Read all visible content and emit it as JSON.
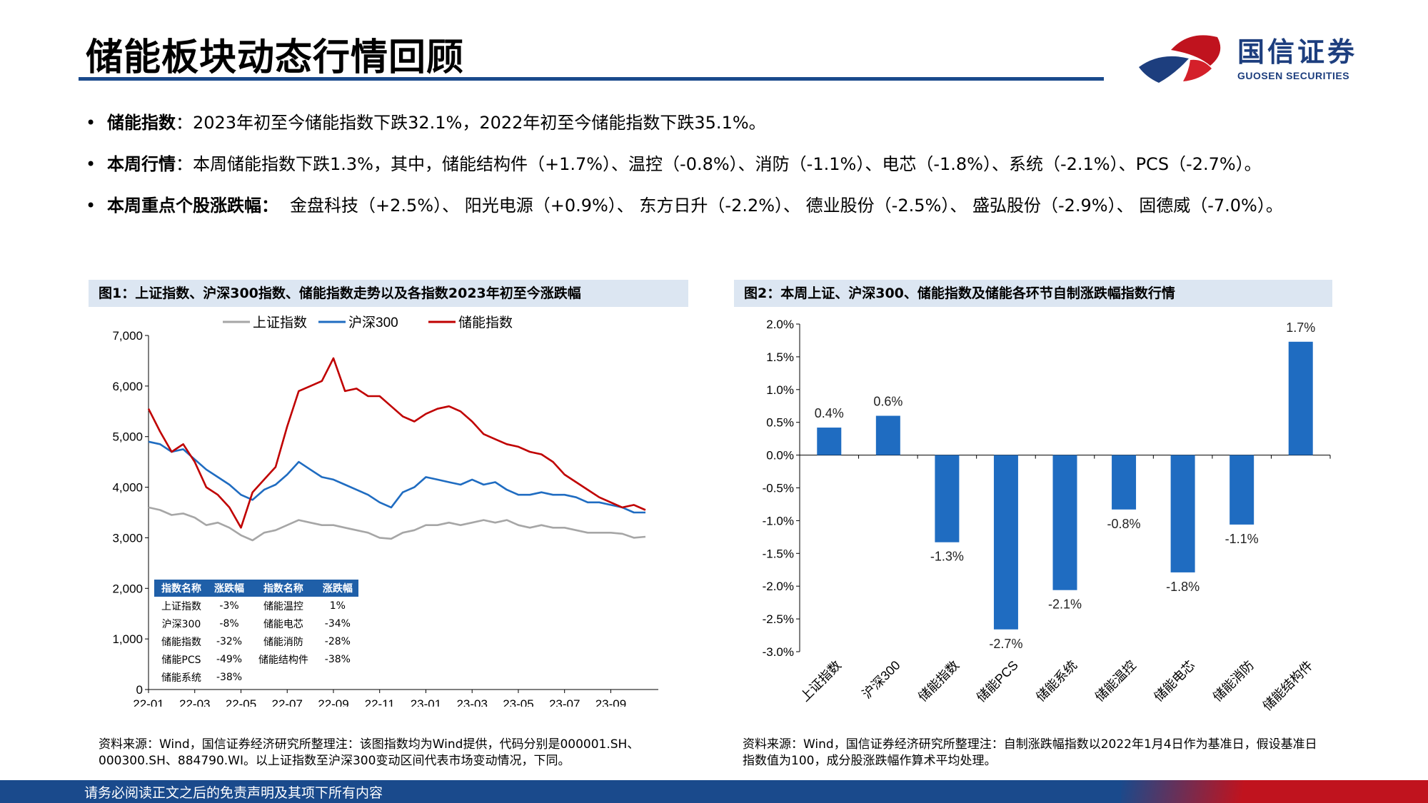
{
  "page": {
    "title": "储能板块动态行情回顾",
    "logo": {
      "cn": "国信证券",
      "en": "GUOSEN SECURITIES"
    },
    "footer": "请务必阅读正文之后的免责声明及其项下所有内容"
  },
  "bullets": [
    {
      "dot": "•",
      "label": "储能指数",
      "text": "：2023年初至今储能指数下跌32.1%，2022年初至今储能指数下跌35.1%。"
    },
    {
      "dot": "•",
      "label": "本周行情",
      "text": "：本周储能指数下跌1.3%，其中，储能结构件（+1.7%）、温控（-0.8%）、消防（-1.1%）、电芯（-1.8%）、系统（-2.1%）、PCS（-2.7%）。"
    },
    {
      "dot": "•",
      "label": "本周重点个股涨跌幅：",
      "text": "金盘科技（+2.5%）、 阳光电源（+0.9%）、 东方日升（-2.2%）、 德业股份（-2.5%）、 盛弘股份（-2.9%）、 固德威（-7.0%）。"
    }
  ],
  "fig1": {
    "caption": "图1：上证指数、沪深300指数、储能指数走势以及各指数2023年初至今涨跌幅",
    "source": "资料来源：Wind，国信证券经济研究所整理注：该图指数均为Wind提供，代码分别是000001.SH、000300.SH、884790.WI。以上证指数至沪深300变动区间代表市场变动情况，下同。",
    "table": {
      "headers": [
        "指数名称",
        "涨跌幅",
        "指数名称",
        "涨跌幅"
      ],
      "rows": [
        [
          "上证指数",
          "-3%",
          "储能温控",
          "1%"
        ],
        [
          "沪深300",
          "-8%",
          "储能电芯",
          "-34%"
        ],
        [
          "储能指数",
          "-32%",
          "储能消防",
          "-28%"
        ],
        [
          "储能PCS",
          "-49%",
          "储能结构件",
          "-38%"
        ],
        [
          "储能系统",
          "-38%",
          "",
          ""
        ]
      ]
    }
  },
  "fig2": {
    "caption": "图2：本周上证、沪深300、储能指数及储能各环节自制涨跌幅指数行情",
    "source": "资料来源：Wind，国信证券经济研究所整理注：自制涨跌幅指数以2022年1月4日作为基准日，假设基准日指数值为100，成分股涨跌幅作算术平均处理。"
  },
  "chart_data": [
    {
      "type": "line",
      "title": "",
      "xlabel": "",
      "ylabel": "",
      "ylim": [
        0,
        7000
      ],
      "yticks": [
        "0",
        "1,000",
        "2,000",
        "3,000",
        "4,000",
        "5,000",
        "6,000",
        "7,000"
      ],
      "xticks": [
        "22-01",
        "22-03",
        "22-05",
        "22-07",
        "22-09",
        "22-11",
        "23-01",
        "23-03",
        "23-05",
        "23-07",
        "23-09"
      ],
      "x": [
        0,
        0.5,
        1,
        1.5,
        2,
        2.5,
        3,
        3.5,
        4,
        4.5,
        5,
        5.5,
        6,
        6.5,
        7,
        7.5,
        8,
        8.5,
        9,
        9.5,
        10,
        10.5,
        11,
        11.5,
        12,
        12.5,
        13,
        13.5,
        14,
        14.5,
        15,
        15.5,
        16,
        16.5,
        17,
        17.5,
        18,
        18.5,
        19,
        19.5,
        20,
        20.5,
        21,
        21.5
      ],
      "legend_position": "top-center",
      "grid": false,
      "series": [
        {
          "name": "上证指数",
          "color": "#a6a6a6",
          "values": [
            3600,
            3550,
            3450,
            3480,
            3400,
            3250,
            3300,
            3200,
            3050,
            2950,
            3100,
            3150,
            3250,
            3350,
            3300,
            3250,
            3250,
            3200,
            3150,
            3100,
            3000,
            2980,
            3100,
            3150,
            3250,
            3250,
            3300,
            3250,
            3300,
            3350,
            3300,
            3350,
            3250,
            3200,
            3250,
            3200,
            3200,
            3150,
            3100,
            3100,
            3100,
            3080,
            3000,
            3020
          ]
        },
        {
          "name": "沪深300",
          "color": "#1f6cc1",
          "values": [
            4900,
            4850,
            4700,
            4750,
            4550,
            4350,
            4200,
            4050,
            3850,
            3750,
            3950,
            4050,
            4250,
            4500,
            4350,
            4200,
            4150,
            4050,
            3950,
            3850,
            3700,
            3600,
            3900,
            4000,
            4200,
            4150,
            4100,
            4050,
            4150,
            4050,
            4100,
            3950,
            3850,
            3850,
            3900,
            3850,
            3850,
            3800,
            3700,
            3700,
            3650,
            3600,
            3500,
            3500
          ]
        },
        {
          "name": "储能指数",
          "color": "#c00000",
          "values": [
            5550,
            5100,
            4700,
            4850,
            4500,
            4000,
            3850,
            3600,
            3200,
            3900,
            4150,
            4400,
            5200,
            5900,
            6000,
            6100,
            6550,
            5900,
            5950,
            5800,
            5800,
            5600,
            5400,
            5300,
            5450,
            5550,
            5600,
            5500,
            5300,
            5050,
            4950,
            4850,
            4800,
            4700,
            4650,
            4500,
            4250,
            4100,
            3950,
            3800,
            3700,
            3600,
            3650,
            3550
          ]
        }
      ]
    },
    {
      "type": "bar",
      "title": "",
      "xlabel": "",
      "ylabel": "",
      "ylim": [
        -3.0,
        2.0
      ],
      "yticks": [
        "2.0%",
        "1.5%",
        "1.0%",
        "0.5%",
        "0.0%",
        "-0.5%",
        "-1.0%",
        "-1.5%",
        "-2.0%",
        "-2.5%",
        "-3.0%"
      ],
      "categories": [
        "上证指数",
        "沪深300",
        "储能指数",
        "储能PCS",
        "储能系统",
        "储能温控",
        "储能电芯",
        "储能消防",
        "储能结构件"
      ],
      "values": [
        0.4,
        0.6,
        -1.3,
        -2.7,
        -2.1,
        -0.8,
        -1.8,
        -1.1,
        1.7
      ],
      "real_values": [
        0.42,
        0.6,
        -1.33,
        -2.66,
        -2.06,
        -0.83,
        -1.79,
        -1.06,
        1.73
      ],
      "labels": [
        "0.4%",
        "0.6%",
        "-1.3%",
        "-2.7%",
        "-2.1%",
        "-0.8%",
        "-1.8%",
        "-1.1%",
        "1.7%"
      ],
      "color": "#1f6cc1",
      "grid": false
    }
  ]
}
